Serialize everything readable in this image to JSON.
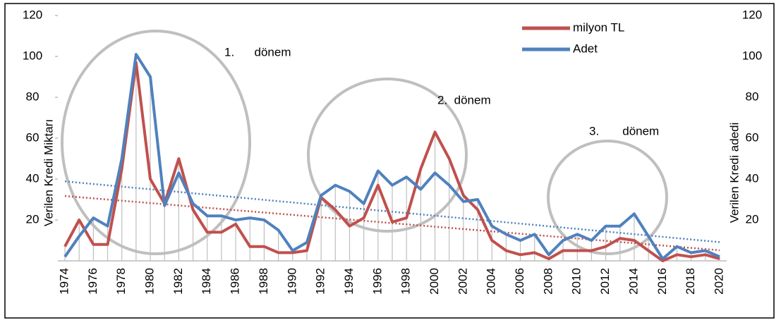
{
  "chart_data": {
    "type": "line",
    "categories": [
      "1974",
      null,
      "1976",
      null,
      "1978",
      null,
      "1980",
      null,
      "1982",
      null,
      "1984",
      null,
      "1986",
      null,
      "1988",
      null,
      "1990",
      null,
      "1992",
      null,
      "1994",
      null,
      "1996",
      null,
      "1998",
      null,
      "2000",
      null,
      "2002",
      null,
      "2004",
      null,
      "2006",
      null,
      "2008",
      null,
      "2010",
      null,
      "2012",
      null,
      "2014",
      null,
      "2016",
      null,
      "2018",
      null,
      "2020"
    ],
    "series": [
      {
        "name": "milyon TL",
        "color": "#c0504d",
        "values": [
          7,
          20,
          8,
          8,
          45,
          97,
          40,
          28,
          50,
          25,
          14,
          14,
          18,
          7,
          7,
          4,
          4,
          5,
          31,
          25,
          17,
          21,
          37,
          19,
          21,
          45,
          63,
          50,
          32,
          25,
          10,
          5,
          3,
          4,
          1,
          5,
          5,
          5,
          7,
          11,
          10,
          5,
          0,
          3,
          2,
          3,
          1
        ]
      },
      {
        "name": "Adet",
        "color": "#4f81bd",
        "axis": "y2",
        "values": [
          2,
          12,
          21,
          17,
          50,
          101,
          90,
          27,
          43,
          28,
          22,
          22,
          20,
          21,
          20,
          15,
          5,
          9,
          32,
          37,
          34,
          28,
          44,
          37,
          41,
          35,
          43,
          37,
          29,
          30,
          17,
          13,
          10,
          13,
          3,
          10,
          13,
          10,
          17,
          17,
          23,
          12,
          1,
          7,
          4,
          5,
          2
        ]
      }
    ],
    "ylabel": "Verilen Kredi Miktarı",
    "y2label": "Verilen Kredi adedi",
    "ylim": [
      0,
      120
    ],
    "yticks": [
      20,
      40,
      60,
      80,
      100,
      120
    ],
    "y2lim": [
      0,
      120
    ],
    "y2ticks": [
      20,
      40,
      60,
      80,
      100,
      120
    ],
    "trendline": true,
    "drop_lines": true,
    "annotations": [
      "1.      dönem",
      "2.  dönem",
      "3.       dönem"
    ]
  }
}
